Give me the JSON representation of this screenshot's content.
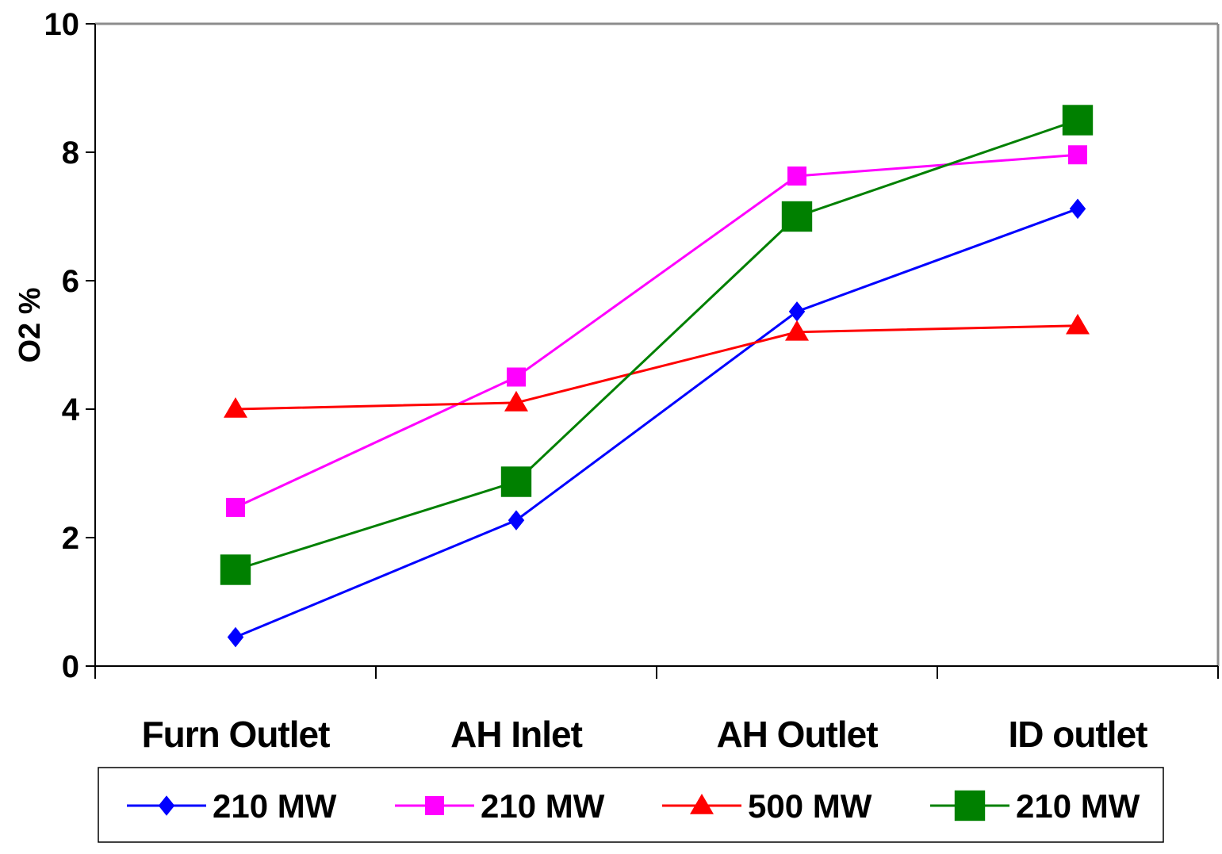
{
  "chart_data": {
    "type": "line",
    "title": "",
    "xlabel": "",
    "ylabel": "O2 %",
    "categories": [
      "Furn Outlet",
      "AH Inlet",
      "AH Outlet",
      "ID outlet"
    ],
    "ylim": [
      0,
      10
    ],
    "yticks": [
      "0",
      "2",
      "4",
      "6",
      "8",
      "10"
    ],
    "grid": false,
    "legend_position": "bottom",
    "series": [
      {
        "name": "210 MW",
        "values": [
          0.45,
          2.27,
          5.52,
          7.12
        ],
        "color": "#0000ff",
        "marker": "diamond"
      },
      {
        "name": "210 MW",
        "values": [
          2.47,
          4.5,
          7.63,
          7.96
        ],
        "color": "#ff00ff",
        "marker": "square"
      },
      {
        "name": "500 MW",
        "values": [
          4.0,
          4.1,
          5.2,
          5.3
        ],
        "color": "#ff0000",
        "marker": "triangle"
      },
      {
        "name": "210 MW",
        "values": [
          1.5,
          2.87,
          7.0,
          8.5
        ],
        "color": "#008000",
        "marker": "square-large"
      }
    ]
  }
}
